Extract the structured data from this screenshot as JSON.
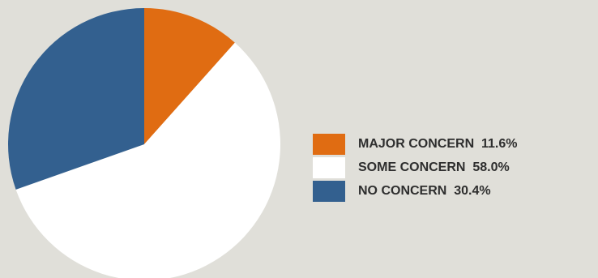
{
  "chart_data": {
    "type": "pie",
    "slices": [
      {
        "label": "MAJOR CONCERN",
        "value": 11.6,
        "value_text": "11.6%",
        "color": "#e06c12"
      },
      {
        "label": "SOME CONCERN",
        "value": 58.0,
        "value_text": "58.0%",
        "color": "#ffffff"
      },
      {
        "label": "NO CONCERN",
        "value": 30.4,
        "value_text": "30.4%",
        "color": "#33608f"
      }
    ],
    "start_angle": "12 o'clock",
    "direction": "clockwise",
    "legend_position": "right"
  }
}
